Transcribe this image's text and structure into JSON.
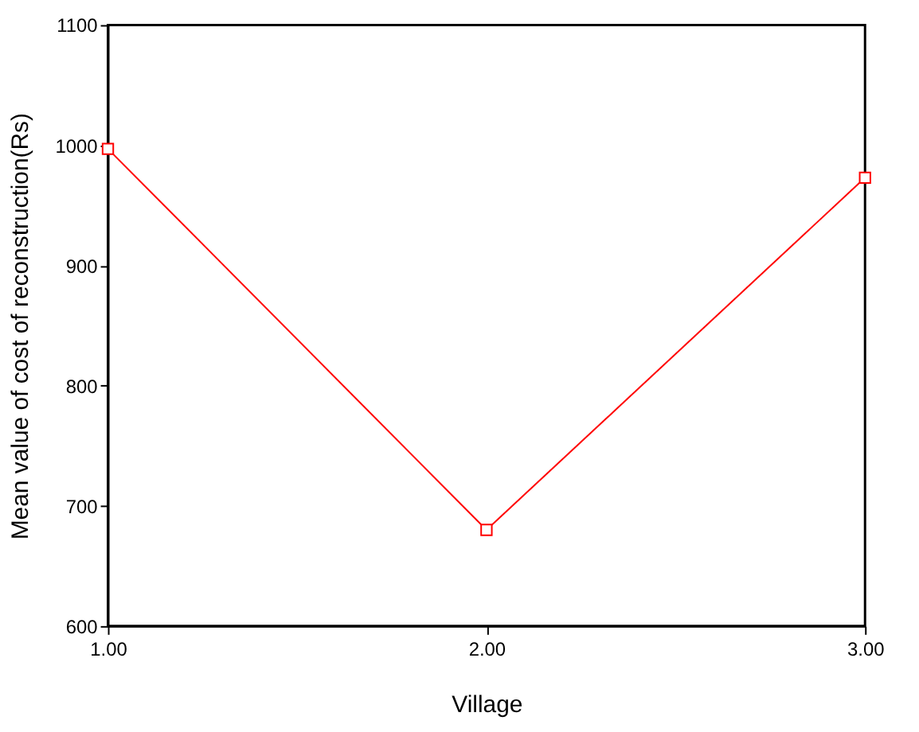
{
  "chart_data": {
    "type": "line",
    "xlabel": "Village",
    "ylabel": "Mean value of cost of reconstruction(Rs)",
    "x": [
      1,
      2,
      3
    ],
    "series": [
      {
        "color": "#ff0000",
        "values": [
          997,
          680,
          973
        ]
      }
    ],
    "xlim": [
      1,
      3
    ],
    "xticks": [
      {
        "value": 1,
        "label": "1.00"
      },
      {
        "value": 2,
        "label": "2.00"
      },
      {
        "value": 3,
        "label": "3.00"
      }
    ],
    "ylim": [
      600,
      1100
    ],
    "yticks": [
      600,
      700,
      800,
      900,
      1000,
      1100
    ],
    "marker": "square",
    "line_style": "solid",
    "grid": false
  }
}
